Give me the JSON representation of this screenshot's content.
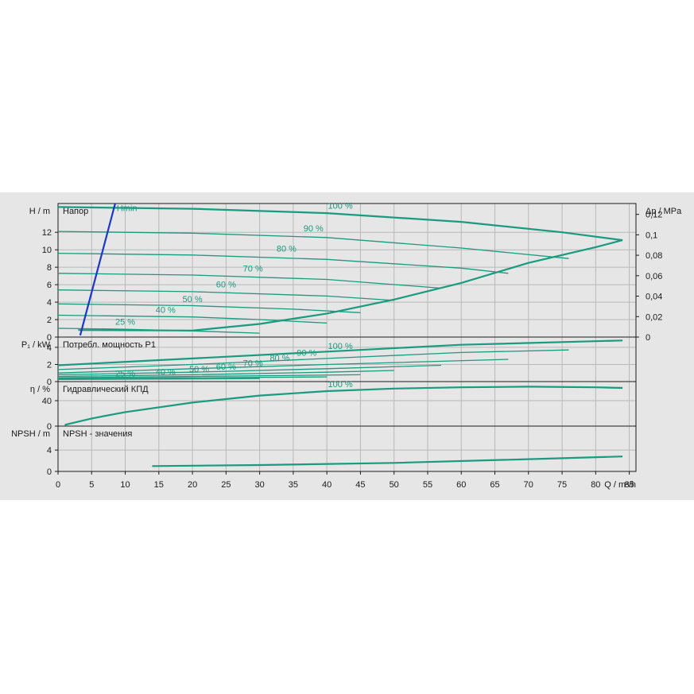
{
  "chart_data": {
    "type": "line",
    "x_axis": {
      "label": "Q / m³/h",
      "range": [
        0,
        85
      ],
      "ticks": [
        0,
        5,
        10,
        15,
        20,
        25,
        30,
        35,
        40,
        45,
        50,
        55,
        60,
        65,
        70,
        75,
        80,
        85
      ],
      "grid": true
    },
    "accent_color": "#1a9a7e",
    "axis_color": "#1a1a1a",
    "bg_color": "#e6e6e6",
    "panels": [
      {
        "id": "head",
        "title": "Напор",
        "ylabel": "H / m",
        "ylim": [
          0,
          15.3
        ],
        "yticks": [
          0,
          2,
          4,
          6,
          8,
          10,
          12
        ],
        "right_axis": {
          "label": "Δp / MPa",
          "ticks": [
            "0",
            "0,02",
            "0,04",
            "0,06",
            "0,08",
            "0,1",
            "0,12"
          ],
          "values": [
            0,
            0.02,
            0.04,
            0.06,
            0.08,
            0.1,
            0.12
          ]
        },
        "series": [
          {
            "label": "100 %",
            "label_at": [
              42,
              14.7
            ],
            "points": [
              [
                0,
                14.9
              ],
              [
                20,
                14.7
              ],
              [
                40,
                14.2
              ],
              [
                60,
                13.2
              ],
              [
                75,
                12.0
              ],
              [
                84,
                11.1
              ]
            ]
          },
          {
            "label": "90 %",
            "label_at": [
              38,
              12.1
            ],
            "points": [
              [
                0,
                12.1
              ],
              [
                20,
                11.9
              ],
              [
                40,
                11.4
              ],
              [
                60,
                10.2
              ],
              [
                76,
                9.0
              ]
            ]
          },
          {
            "label": "80 %",
            "label_at": [
              34,
              9.8
            ],
            "points": [
              [
                0,
                9.6
              ],
              [
                20,
                9.4
              ],
              [
                40,
                8.9
              ],
              [
                60,
                7.9
              ],
              [
                67,
                7.3
              ]
            ]
          },
          {
            "label": "70 %",
            "label_at": [
              29,
              7.5
            ],
            "points": [
              [
                0,
                7.3
              ],
              [
                20,
                7.1
              ],
              [
                40,
                6.6
              ],
              [
                57,
                5.6
              ]
            ]
          },
          {
            "label": "60 %",
            "label_at": [
              25,
              5.7
            ],
            "points": [
              [
                0,
                5.4
              ],
              [
                20,
                5.2
              ],
              [
                40,
                4.7
              ],
              [
                50,
                4.2
              ]
            ]
          },
          {
            "label": "50 %",
            "label_at": [
              20,
              4.0
            ],
            "points": [
              [
                0,
                3.8
              ],
              [
                20,
                3.6
              ],
              [
                35,
                3.2
              ],
              [
                45,
                2.8
              ]
            ]
          },
          {
            "label": "40 %",
            "label_at": [
              16,
              2.8
            ],
            "points": [
              [
                0,
                2.5
              ],
              [
                20,
                2.3
              ],
              [
                30,
                2.0
              ],
              [
                40,
                1.6
              ]
            ]
          },
          {
            "label": "25 %",
            "label_at": [
              10,
              1.4
            ],
            "points": [
              [
                0,
                1.0
              ],
              [
                10,
                0.9
              ],
              [
                20,
                0.7
              ],
              [
                30,
                0.45
              ]
            ]
          },
          {
            "label": "",
            "points": [
              [
                3,
                0.8
              ],
              [
                20,
                0.75
              ],
              [
                30,
                1.5
              ],
              [
                40,
                2.7
              ],
              [
                50,
                4.3
              ],
              [
                60,
                6.2
              ],
              [
                70,
                8.5
              ],
              [
                80,
                10.3
              ],
              [
                84,
                11.1
              ]
            ]
          }
        ],
        "reference_line": {
          "label": "Hmin",
          "color": "#1c37c8",
          "label_at": [
            8.5,
            14.7
          ],
          "points": [
            [
              3.3,
              0.2
            ],
            [
              8.5,
              15.3
            ]
          ]
        }
      },
      {
        "id": "power",
        "title": "Потребл. мощность P1",
        "ylabel": "P₁ / kW",
        "ylim": [
          0,
          5.2
        ],
        "yticks": [
          0,
          2,
          4
        ],
        "series": [
          {
            "label": "100 %",
            "label_at": [
              42,
              3.8
            ],
            "points": [
              [
                0,
                1.9
              ],
              [
                20,
                2.7
              ],
              [
                40,
                3.5
              ],
              [
                60,
                4.3
              ],
              [
                84,
                4.8
              ]
            ]
          },
          {
            "label": "90 %",
            "label_at": [
              37,
              3.0
            ],
            "points": [
              [
                0,
                1.4
              ],
              [
                20,
                2.0
              ],
              [
                40,
                2.7
              ],
              [
                60,
                3.4
              ],
              [
                76,
                3.7
              ]
            ]
          },
          {
            "label": "80 %",
            "label_at": [
              33,
              2.4
            ],
            "points": [
              [
                0,
                1.0
              ],
              [
                20,
                1.5
              ],
              [
                40,
                2.0
              ],
              [
                67,
                2.6
              ]
            ]
          },
          {
            "label": "70 %",
            "label_at": [
              29,
              1.8
            ],
            "points": [
              [
                0,
                0.8
              ],
              [
                20,
                1.1
              ],
              [
                40,
                1.5
              ],
              [
                57,
                1.9
              ]
            ]
          },
          {
            "label": "60 %",
            "label_at": [
              25,
              1.4
            ],
            "points": [
              [
                0,
                0.6
              ],
              [
                20,
                0.8
              ],
              [
                40,
                1.1
              ],
              [
                50,
                1.3
              ]
            ]
          },
          {
            "label": "50 %",
            "label_at": [
              21,
              1.1
            ],
            "points": [
              [
                0,
                0.45
              ],
              [
                20,
                0.6
              ],
              [
                45,
                0.8
              ]
            ]
          },
          {
            "label": "40 %",
            "label_at": [
              16,
              0.8
            ],
            "points": [
              [
                0,
                0.35
              ],
              [
                20,
                0.45
              ],
              [
                40,
                0.55
              ]
            ]
          },
          {
            "label": "25 %",
            "label_at": [
              10,
              0.6
            ],
            "points": [
              [
                0,
                0.25
              ],
              [
                15,
                0.3
              ],
              [
                30,
                0.35
              ]
            ]
          }
        ]
      },
      {
        "id": "efficiency",
        "title": "Гидравлический КПД",
        "ylabel": "η / %",
        "ylim": [
          0,
          70
        ],
        "yticks": [
          0,
          40
        ],
        "series": [
          {
            "label": "100 %",
            "label_at": [
              42,
              61
            ],
            "points": [
              [
                1,
                2
              ],
              [
                5,
                12
              ],
              [
                10,
                22
              ],
              [
                20,
                37
              ],
              [
                30,
                48
              ],
              [
                40,
                55
              ],
              [
                50,
                59
              ],
              [
                60,
                61
              ],
              [
                70,
                62
              ],
              [
                80,
                61
              ],
              [
                84,
                60
              ]
            ]
          }
        ]
      },
      {
        "id": "npsh",
        "title": "NPSH - значения",
        "ylabel": "NPSH / m",
        "ylim": [
          0,
          8.5
        ],
        "yticks": [
          0,
          4
        ],
        "series": [
          {
            "label": "",
            "points": [
              [
                14,
                1.0
              ],
              [
                30,
                1.2
              ],
              [
                50,
                1.6
              ],
              [
                70,
                2.3
              ],
              [
                84,
                2.8
              ]
            ]
          }
        ]
      }
    ]
  }
}
